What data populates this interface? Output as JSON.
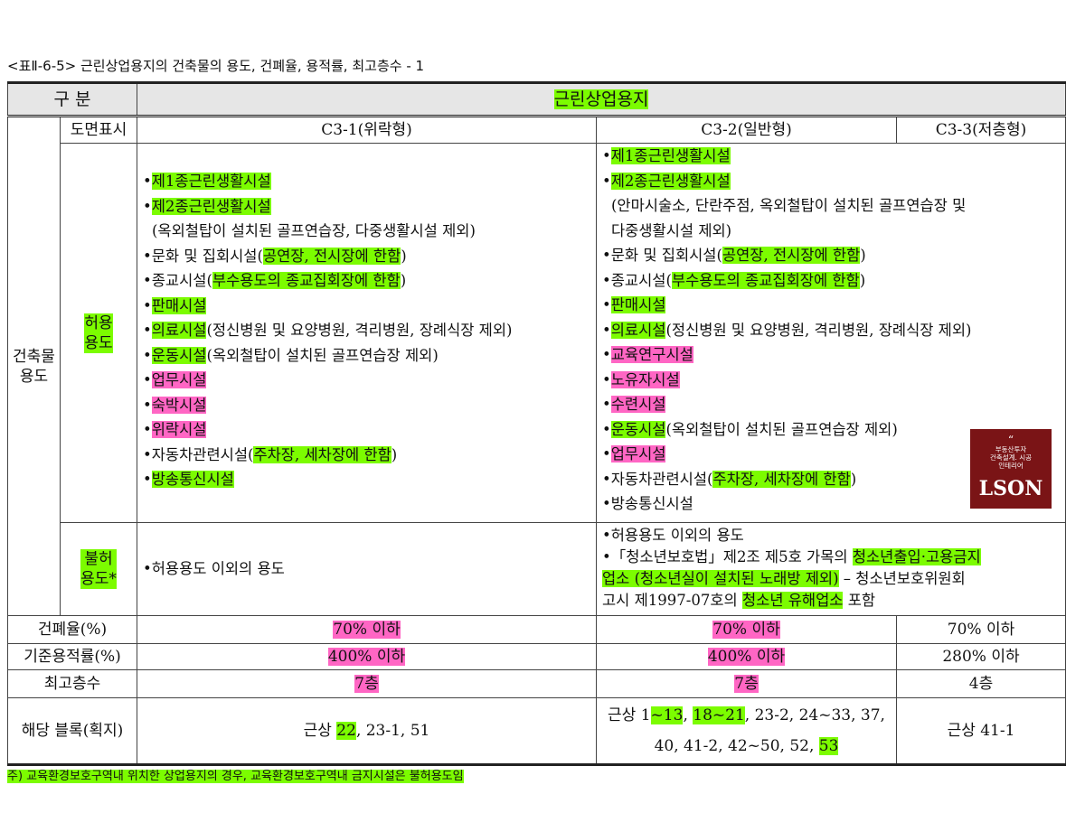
{
  "caption": "<표Ⅱ-6-5> 근린상업용지의 건축물의 용도, 건폐율, 용적률, 최고층수 - 1",
  "header": {
    "division": "구 분",
    "zone": "근린상업용지"
  },
  "sub": {
    "map_label": "도면표시",
    "c31": "C3-1(위락형)",
    "c32": "C3-2(일반형)",
    "c33": "C3-3(저층형)"
  },
  "row_groups": {
    "building_use": "건축물\n용도",
    "allowed": "허용\n용도",
    "prohibited": "불허\n용도*"
  },
  "c31_allowed": [
    {
      "t": "제1종근린생활시설",
      "h": "g"
    },
    {
      "t": "제2종근린생활시설",
      "h": "g"
    },
    {
      "t": "(옥외철탑이 설치된 골프연습장, 다중생활시설 제외)",
      "h": "",
      "i": true
    },
    {
      "pre": "문화 및 집회시설(",
      "t": "공연장, 전시장에 한함",
      "post": ")",
      "h": "g"
    },
    {
      "pre": "종교시설(",
      "t": "부수용도의 종교집회장에 한함",
      "post": ")",
      "h": "g"
    },
    {
      "t": "판매시설",
      "h": "g"
    },
    {
      "t": "의료시설",
      "post": "(정신병원 및 요양병원, 격리병원, 장례식장 제외)",
      "h": "g"
    },
    {
      "t": "운동시설",
      "post": "(옥외철탑이 설치된 골프연습장 제외)",
      "h": "g"
    },
    {
      "t": "업무시설",
      "h": "p"
    },
    {
      "t": "숙박시설",
      "h": "p"
    },
    {
      "t": "위락시설",
      "h": "p"
    },
    {
      "pre": "자동차관련시설(",
      "t": "주차장, 세차장에 한함",
      "post": ")",
      "h": "g"
    },
    {
      "t": "방송통신시설",
      "h": "g"
    }
  ],
  "c32_allowed": [
    {
      "t": "제1종근린생활시설",
      "h": "g"
    },
    {
      "t": "제2종근린생활시설",
      "h": "g"
    },
    {
      "t": "(안마시술소, 단란주점, 옥외철탑이 설치된 골프연습장 및",
      "h": "",
      "i": true
    },
    {
      "t": "다중생활시설 제외)",
      "h": "",
      "i": true
    },
    {
      "pre": "문화 및 집회시설(",
      "t": "공연장, 전시장에 한함",
      "post": ")",
      "h": "g"
    },
    {
      "pre": "종교시설(",
      "t": "부수용도의 종교집회장에 한함",
      "post": ")",
      "h": "g"
    },
    {
      "t": "판매시설",
      "h": "g"
    },
    {
      "t": "의료시설",
      "post": "(정신병원 및 요양병원, 격리병원, 장례식장 제외)",
      "h": "g"
    },
    {
      "t": "교육연구시설",
      "h": "p"
    },
    {
      "t": "노유자시설",
      "h": "p"
    },
    {
      "t": "수련시설",
      "h": "p"
    },
    {
      "t": "운동시설",
      "post": "(옥외철탑이 설치된 골프연습장 제외)",
      "h": "g"
    },
    {
      "t": "업무시설",
      "h": "p"
    },
    {
      "pre": "자동차관련시설(",
      "t": "주차장, 세차장에 한함",
      "post": ")",
      "h": "g"
    },
    {
      "t": "방송통신시설",
      "h": ""
    }
  ],
  "c31_prohibited": "•허용용도 이외의 용도",
  "c32_prohibited": {
    "l1": "•허용용도 이외의 용도",
    "l2a": "•「청소년보호법」제2조 제5호 가목의 ",
    "l2b": "청소년출입·고용금지",
    "l3a": "업소 (청소년실이 설치된 노래방 제외)",
    "l3b": " – 청소년보호위원회",
    "l4a": "고시 제1997-07호의 ",
    "l4b": "청소년 유해업소",
    "l4c": " 포함"
  },
  "rows": {
    "bcr": {
      "label": "건폐율(%)",
      "c31": "70% 이하",
      "c32": "70% 이하",
      "c33": "70% 이하"
    },
    "far": {
      "label": "기준용적률(%)",
      "c31": "400% 이하",
      "c32": "400% 이하",
      "c33": "280% 이하"
    },
    "floors": {
      "label": "최고층수",
      "c31": "7층",
      "c32": "7층",
      "c33": "4층"
    },
    "blocks": {
      "label": "해당 블록(획지)",
      "c31_pre": "근상 ",
      "c31_hl": "22",
      "c31_post": ", 23-1, 51",
      "c32_a": "근상 1",
      "c32_b": "~13",
      "c32_c": ", ",
      "c32_d": "18~21",
      "c32_e": ", 23-2, 24~33, 37,",
      "c32_f": "40, 41-2, 42~50, 52, ",
      "c32_g": "53",
      "c33": "근상 41-1"
    }
  },
  "footnote": "주) 교육환경보호구역내 위치한 상업용지의 경우, 교육환경보호구역내 금지시설은 불허용도임",
  "logo": {
    "quote": "“",
    "line1": "부동산투자",
    "line2": "건축설계. 시공",
    "line3": "인테리어",
    "name": "LSON"
  },
  "colors": {
    "green_highlight": "#7cfc00",
    "pink_highlight": "#ff66c4",
    "header_bg": "#e6e6e6",
    "logo_bg": "#7a1416"
  }
}
